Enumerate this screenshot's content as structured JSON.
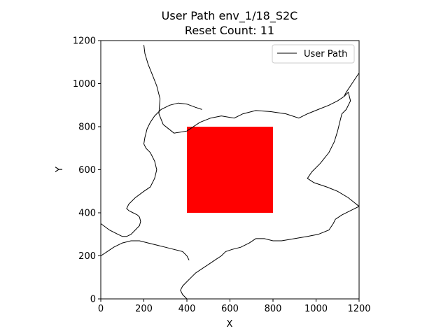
{
  "chart_data": {
    "type": "line",
    "title": "User Path env_1/18_S2C",
    "subtitle": "Reset Count: 11",
    "xlabel": "X",
    "ylabel": "Y",
    "xlim": [
      0,
      1200
    ],
    "ylim": [
      0,
      1200
    ],
    "xticks": [
      0,
      200,
      400,
      600,
      800,
      1000,
      1200
    ],
    "yticks": [
      0,
      200,
      400,
      600,
      800,
      1000,
      1200
    ],
    "grid": false,
    "legend": {
      "entries": [
        "User Path"
      ],
      "placement": "top-right"
    },
    "obstacle": {
      "x": [
        400,
        800
      ],
      "y": [
        400,
        800
      ],
      "color": "#ff0000"
    },
    "series": [
      {
        "name": "User Path",
        "color": "#000000",
        "paths": [
          [
            [
              200,
              1180
            ],
            [
              205,
              1140
            ],
            [
              220,
              1090
            ],
            [
              240,
              1040
            ],
            [
              260,
              990
            ],
            [
              275,
              930
            ],
            [
              270,
              860
            ],
            [
              290,
              810
            ],
            [
              340,
              770
            ],
            [
              400,
              780
            ],
            [
              460,
              820
            ],
            [
              510,
              840
            ],
            [
              560,
              850
            ],
            [
              620,
              840
            ],
            [
              660,
              860
            ],
            [
              720,
              875
            ],
            [
              790,
              870
            ],
            [
              860,
              860
            ],
            [
              920,
              840
            ],
            [
              960,
              860
            ],
            [
              1010,
              880
            ],
            [
              1060,
              900
            ],
            [
              1100,
              920
            ],
            [
              1130,
              940
            ],
            [
              1150,
              960
            ],
            [
              1160,
              920
            ],
            [
              1140,
              880
            ],
            [
              1120,
              860
            ],
            [
              1110,
              820
            ],
            [
              1100,
              780
            ],
            [
              1085,
              730
            ],
            [
              1060,
              680
            ],
            [
              1020,
              630
            ],
            [
              980,
              590
            ],
            [
              960,
              560
            ],
            [
              990,
              540
            ],
            [
              1050,
              520
            ],
            [
              1100,
              500
            ],
            [
              1150,
              470
            ],
            [
              1200,
              430
            ]
          ],
          [
            [
              1200,
              430
            ],
            [
              1160,
              410
            ],
            [
              1120,
              390
            ],
            [
              1090,
              370
            ],
            [
              1080,
              350
            ],
            [
              1060,
              320
            ],
            [
              1010,
              300
            ],
            [
              960,
              290
            ],
            [
              900,
              280
            ],
            [
              840,
              270
            ],
            [
              800,
              270
            ],
            [
              760,
              280
            ],
            [
              720,
              280
            ],
            [
              690,
              260
            ],
            [
              650,
              240
            ],
            [
              610,
              230
            ],
            [
              580,
              220
            ],
            [
              560,
              200
            ],
            [
              530,
              180
            ],
            [
              500,
              160
            ],
            [
              470,
              140
            ],
            [
              440,
              120
            ],
            [
              420,
              100
            ],
            [
              400,
              80
            ],
            [
              380,
              60
            ],
            [
              370,
              40
            ],
            [
              380,
              20
            ],
            [
              400,
              0
            ]
          ],
          [
            [
              0,
              350
            ],
            [
              40,
              320
            ],
            [
              80,
              300
            ],
            [
              100,
              290
            ],
            [
              120,
              290
            ],
            [
              140,
              300
            ],
            [
              160,
              320
            ],
            [
              180,
              340
            ],
            [
              185,
              360
            ],
            [
              180,
              380
            ],
            [
              170,
              390
            ],
            [
              150,
              400
            ],
            [
              130,
              410
            ],
            [
              120,
              420
            ],
            [
              130,
              440
            ],
            [
              160,
              470
            ],
            [
              200,
              500
            ],
            [
              230,
              520
            ],
            [
              250,
              560
            ],
            [
              260,
              600
            ],
            [
              250,
              640
            ],
            [
              230,
              680
            ],
            [
              210,
              700
            ],
            [
              200,
              720
            ],
            [
              205,
              750
            ],
            [
              215,
              790
            ],
            [
              230,
              820
            ],
            [
              250,
              850
            ],
            [
              280,
              880
            ],
            [
              320,
              900
            ],
            [
              360,
              910
            ],
            [
              400,
              905
            ],
            [
              440,
              890
            ],
            [
              470,
              880
            ]
          ],
          [
            [
              1200,
              1050
            ],
            [
              1180,
              1020
            ],
            [
              1160,
              990
            ],
            [
              1140,
              960
            ],
            [
              1130,
              940
            ]
          ],
          [
            [
              0,
              200
            ],
            [
              30,
              220
            ],
            [
              60,
              240
            ],
            [
              100,
              260
            ],
            [
              140,
              270
            ],
            [
              180,
              270
            ],
            [
              220,
              260
            ],
            [
              260,
              250
            ],
            [
              300,
              240
            ],
            [
              340,
              230
            ],
            [
              380,
              220
            ],
            [
              400,
              200
            ],
            [
              410,
              180
            ]
          ]
        ]
      }
    ]
  }
}
